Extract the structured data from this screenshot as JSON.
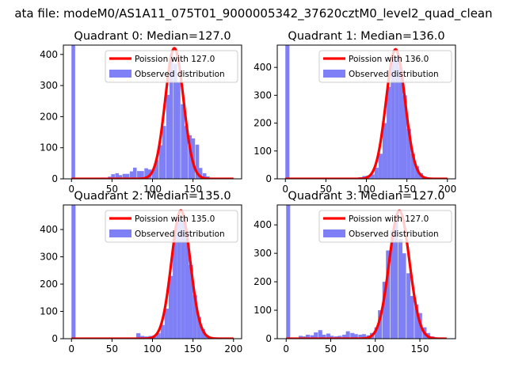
{
  "suptitle": "ata file: modeM0/AS1A11_075T01_9000005342_37620cztM0_level2_quad_clean",
  "colors": {
    "hist": "#7f7ff6",
    "fit": "#ff0000",
    "axes": "#000000"
  },
  "chart_data": [
    {
      "type": "bar",
      "title": "Quadrant 0: Median=127.0",
      "xlim": [
        -10,
        210
      ],
      "ylim": [
        0,
        430
      ],
      "xticks": [
        0,
        50,
        100,
        150
      ],
      "yticks": [
        0,
        100,
        200,
        300,
        400
      ],
      "legend": {
        "placement": "top-right",
        "entries": [
          "Poission with 127.0",
          "Observed distribution"
        ]
      },
      "fit": {
        "mean": 127.0,
        "peak": 420,
        "sigma": 11.3
      },
      "hist": {
        "bin_width": 4.5,
        "bins": [
          [
            0,
            430
          ],
          [
            18,
            2
          ],
          [
            27,
            2
          ],
          [
            36,
            4
          ],
          [
            40,
            3
          ],
          [
            45,
            7
          ],
          [
            49,
            15
          ],
          [
            54,
            18
          ],
          [
            58,
            12
          ],
          [
            63,
            16
          ],
          [
            67,
            16
          ],
          [
            72,
            24
          ],
          [
            76,
            36
          ],
          [
            81,
            25
          ],
          [
            85,
            25
          ],
          [
            90,
            34
          ],
          [
            94,
            30
          ],
          [
            99,
            30
          ],
          [
            103,
            60
          ],
          [
            108,
            108
          ],
          [
            112,
            170
          ],
          [
            117,
            270
          ],
          [
            121,
            400
          ],
          [
            126,
            370
          ],
          [
            130,
            310
          ],
          [
            135,
            240
          ],
          [
            139,
            170
          ],
          [
            144,
            140
          ],
          [
            148,
            130
          ],
          [
            153,
            110
          ],
          [
            157,
            35
          ],
          [
            162,
            18
          ],
          [
            166,
            8
          ],
          [
            171,
            3
          ],
          [
            176,
            2
          ]
        ]
      }
    },
    {
      "type": "bar",
      "title": "Quadrant 1: Median=136.0",
      "xlim": [
        -10,
        210
      ],
      "ylim": [
        0,
        480
      ],
      "xticks": [
        0,
        50,
        100,
        150,
        200
      ],
      "yticks": [
        0,
        100,
        200,
        300,
        400
      ],
      "legend": {
        "placement": "top-right",
        "entries": [
          "Poission with 136.0",
          "Observed distribution"
        ]
      },
      "fit": {
        "mean": 136.0,
        "peak": 465,
        "sigma": 11.7
      },
      "hist": {
        "bin_width": 5,
        "bins": [
          [
            0,
            480
          ],
          [
            85,
            4
          ],
          [
            90,
            6
          ],
          [
            95,
            10
          ],
          [
            100,
            12
          ],
          [
            105,
            16
          ],
          [
            110,
            40
          ],
          [
            115,
            90
          ],
          [
            120,
            200
          ],
          [
            125,
            330
          ],
          [
            130,
            430
          ],
          [
            135,
            440
          ],
          [
            140,
            400
          ],
          [
            145,
            300
          ],
          [
            150,
            180
          ],
          [
            155,
            90
          ],
          [
            160,
            45
          ],
          [
            165,
            20
          ],
          [
            170,
            8
          ],
          [
            175,
            3
          ]
        ]
      }
    },
    {
      "type": "bar",
      "title": "Quadrant 2: Median=135.0",
      "xlim": [
        -10,
        210
      ],
      "ylim": [
        0,
        490
      ],
      "xticks": [
        0,
        50,
        100,
        150,
        200
      ],
      "yticks": [
        0,
        100,
        200,
        300,
        400
      ],
      "legend": {
        "placement": "top-right",
        "entries": [
          "Poission with 135.0",
          "Observed distribution"
        ]
      },
      "fit": {
        "mean": 135.0,
        "peak": 470,
        "sigma": 11.6
      },
      "hist": {
        "bin_width": 5,
        "bins": [
          [
            0,
            490
          ],
          [
            80,
            20
          ],
          [
            85,
            10
          ],
          [
            90,
            8
          ],
          [
            95,
            10
          ],
          [
            100,
            12
          ],
          [
            105,
            20
          ],
          [
            110,
            50
          ],
          [
            115,
            110
          ],
          [
            120,
            230
          ],
          [
            125,
            380
          ],
          [
            130,
            440
          ],
          [
            135,
            430
          ],
          [
            140,
            390
          ],
          [
            145,
            270
          ],
          [
            150,
            160
          ],
          [
            155,
            80
          ],
          [
            160,
            35
          ],
          [
            165,
            12
          ],
          [
            170,
            4
          ]
        ]
      }
    },
    {
      "type": "bar",
      "title": "Quadrant 3: Median=127.0",
      "xlim": [
        -10,
        190
      ],
      "ylim": [
        0,
        470
      ],
      "xticks": [
        0,
        50,
        100,
        150
      ],
      "yticks": [
        0,
        100,
        200,
        300,
        400
      ],
      "legend": {
        "placement": "top-right",
        "entries": [
          "Poission with 127.0",
          "Observed distribution"
        ]
      },
      "fit": {
        "mean": 127.0,
        "peak": 450,
        "sigma": 11.3
      },
      "hist": {
        "bin_width": 4.5,
        "bins": [
          [
            0,
            470
          ],
          [
            14,
            10
          ],
          [
            18,
            8
          ],
          [
            22,
            14
          ],
          [
            27,
            12
          ],
          [
            31,
            22
          ],
          [
            36,
            30
          ],
          [
            40,
            14
          ],
          [
            45,
            18
          ],
          [
            49,
            10
          ],
          [
            54,
            8
          ],
          [
            58,
            10
          ],
          [
            63,
            14
          ],
          [
            67,
            26
          ],
          [
            72,
            20
          ],
          [
            76,
            16
          ],
          [
            81,
            14
          ],
          [
            85,
            16
          ],
          [
            90,
            12
          ],
          [
            94,
            20
          ],
          [
            99,
            40
          ],
          [
            103,
            100
          ],
          [
            108,
            200
          ],
          [
            112,
            310
          ],
          [
            117,
            380
          ],
          [
            121,
            420
          ],
          [
            126,
            350
          ],
          [
            130,
            300
          ],
          [
            135,
            230
          ],
          [
            139,
            150
          ],
          [
            144,
            120
          ],
          [
            148,
            90
          ],
          [
            153,
            40
          ],
          [
            157,
            20
          ],
          [
            162,
            8
          ],
          [
            166,
            4
          ]
        ]
      }
    }
  ]
}
